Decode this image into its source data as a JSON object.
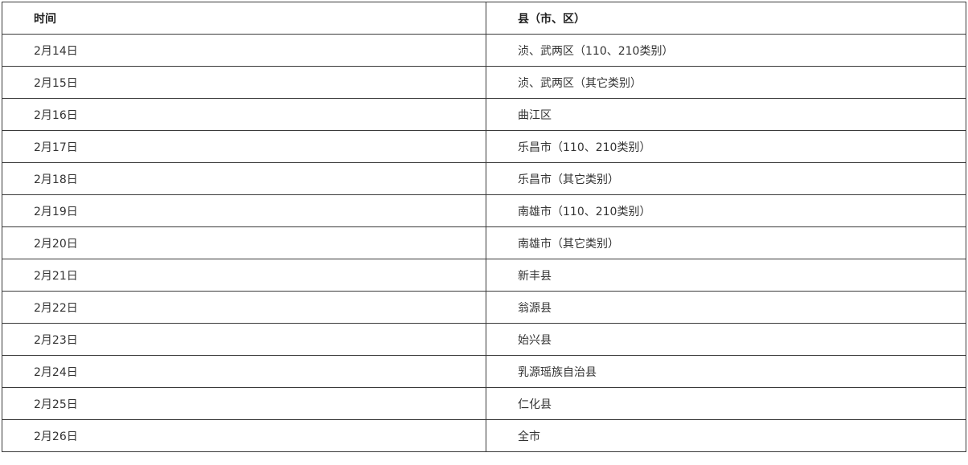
{
  "table": {
    "headers": [
      "时间",
      "县（市、区）"
    ],
    "rows": [
      [
        "2月14日",
        "浈、武两区（110、210类别）"
      ],
      [
        "2月15日",
        "浈、武两区（其它类别）"
      ],
      [
        "2月16日",
        "曲江区"
      ],
      [
        "2月17日",
        "乐昌市（110、210类别）"
      ],
      [
        "2月18日",
        "乐昌市（其它类别）"
      ],
      [
        "2月19日",
        "南雄市（110、210类别）"
      ],
      [
        "2月20日",
        "南雄市（其它类别）"
      ],
      [
        "2月21日",
        "新丰县"
      ],
      [
        "2月22日",
        "翁源县"
      ],
      [
        "2月23日",
        "始兴县"
      ],
      [
        "2月24日",
        "乳源瑶族自治县"
      ],
      [
        "2月25日",
        "仁化县"
      ],
      [
        "2月26日",
        "全市"
      ]
    ]
  }
}
